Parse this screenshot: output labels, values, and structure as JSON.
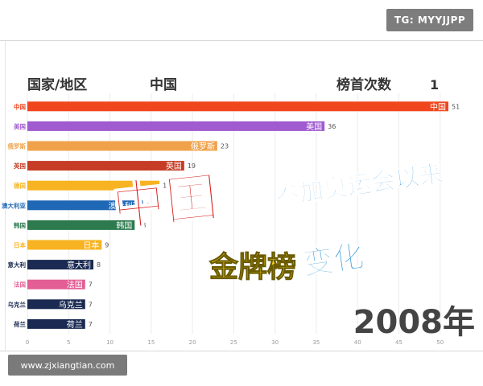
{
  "watermark": {
    "tg": "TG: MYYJJPP",
    "url": "www.zjxiangtian.com"
  },
  "chart_data": {
    "type": "bar",
    "orientation": "horizontal",
    "header": {
      "left": "国家/地区",
      "current": "中国",
      "rank_label": "榜首次数",
      "rank_value": "1"
    },
    "categories": [
      "中国",
      "美国",
      "俄罗斯",
      "英国",
      "德国",
      "澳大利亚",
      "韩国",
      "日本",
      "意大利",
      "法国",
      "乌克兰",
      "荷兰"
    ],
    "values": [
      51,
      36,
      23,
      19,
      16,
      14,
      13,
      9,
      8,
      7,
      7,
      7
    ],
    "bar_labels": [
      "中国",
      "美国",
      "俄罗斯",
      "英国",
      "",
      "澳大利亚",
      "韩国",
      "日本",
      "意大利",
      "法国",
      "乌克兰",
      "荷兰"
    ],
    "colors": [
      "#f0461e",
      "#a05bd0",
      "#f0a24a",
      "#c63c24",
      "#f7b321",
      "#1f68b5",
      "#2c7a4e",
      "#f7b321",
      "#1a2a52",
      "#e25e94",
      "#1a2a52",
      "#1a2a52"
    ],
    "xlim": [
      0,
      51
    ],
    "xticks": [
      0,
      5,
      10,
      15,
      20,
      25,
      30,
      35,
      40,
      45,
      50
    ],
    "grid": true,
    "year": "2008年",
    "overlay": {
      "big": "中国",
      "line1": "参加奥运会以来",
      "line2a": "金牌榜",
      "line2b": "变化"
    }
  }
}
